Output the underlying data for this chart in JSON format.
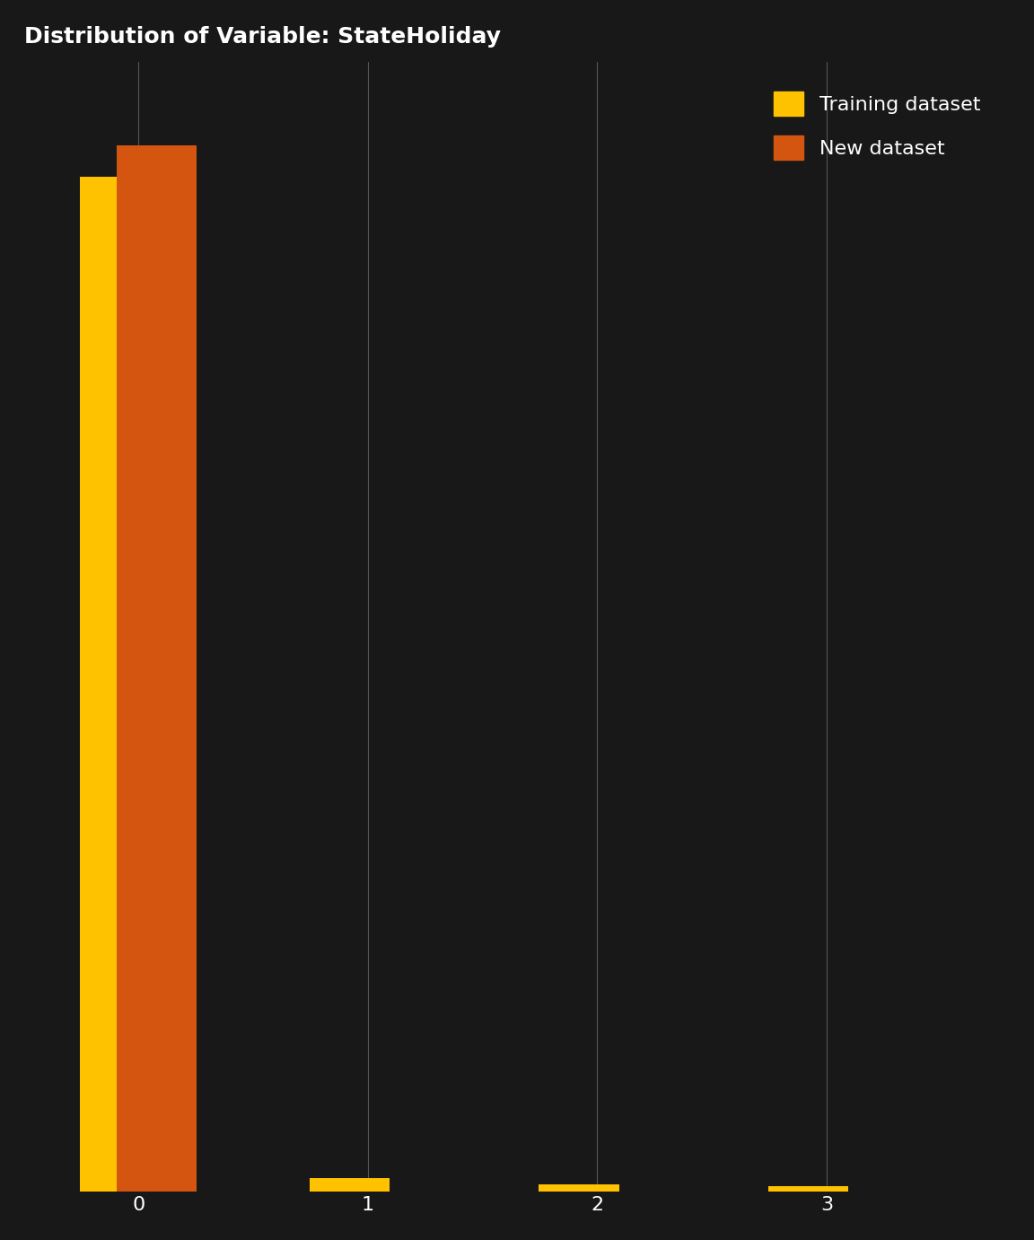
{
  "title": "Distribution of Variable: StateHoliday",
  "categories": [
    0,
    1,
    2,
    3
  ],
  "training_values": [
    0.97,
    0.013,
    0.007,
    0.005
  ],
  "new_values": [
    1.0,
    0.0,
    0.0,
    0.0
  ],
  "training_color": "#FFC200",
  "new_color": "#D45510",
  "background_color": "#181818",
  "text_color": "#ffffff",
  "grid_color": "#555555",
  "title_fontsize": 18,
  "legend_labels": [
    "Training dataset",
    "New dataset"
  ],
  "bar_width": 0.35,
  "bar_overlap": 0.12
}
